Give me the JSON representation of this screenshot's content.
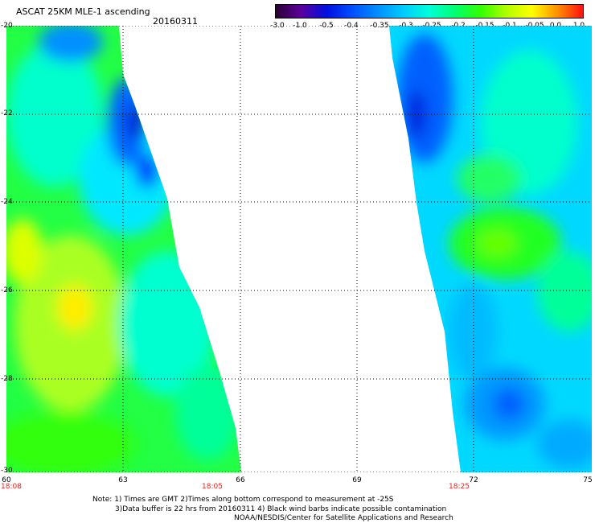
{
  "header": {
    "title": "ASCAT 25KM MLE-1 ascending",
    "date": "20160311"
  },
  "colorbar": {
    "labels": [
      "-3.0",
      "-1.0",
      "-0.5",
      "-0.4",
      "-0.35",
      "-0.3",
      "-0.25",
      "-0.2",
      "-0.15",
      "-0.1",
      "-0.05",
      "0.0",
      "1.0"
    ],
    "colors": [
      "#2a0030",
      "#5a00a0",
      "#0010e0",
      "#0050ff",
      "#0090ff",
      "#00ccff",
      "#00ffd8",
      "#00ff70",
      "#30ff00",
      "#b0ff00",
      "#ffff00",
      "#ff9000",
      "#ff1010"
    ]
  },
  "map": {
    "lat_labels": [
      "-20",
      "-22",
      "-24",
      "-26",
      "-28",
      "-30"
    ],
    "lon_labels": [
      "60",
      "63",
      "66",
      "69",
      "72",
      "75"
    ],
    "time_labels": [
      "18:08",
      "18:05",
      "18:25"
    ]
  },
  "footer": {
    "note_line1": "Note: 1) Times are GMT 2)Times along bottom correspond to measurement at -25S",
    "note_line2": "3)Data buffer is 22 hrs from 20160311 4) Black wind barbs indicate possible contamination",
    "note_line3": "NOAA/NESDIS/Center for Satellite Applications and Research"
  }
}
